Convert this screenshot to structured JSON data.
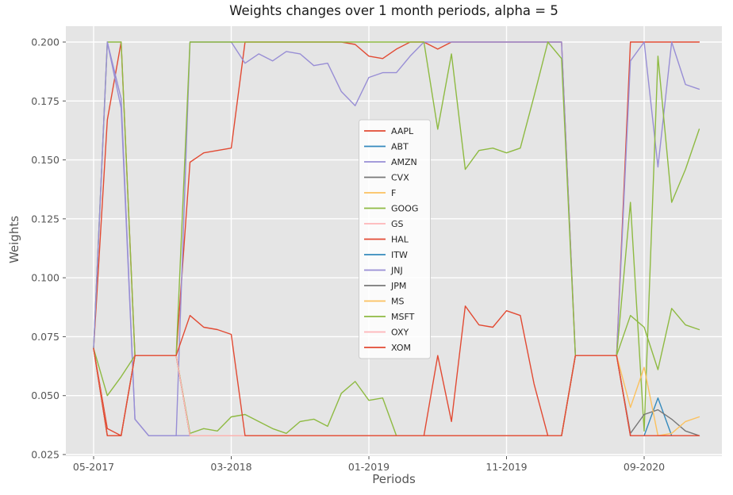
{
  "figure": {
    "title": "Weights changes over 1 month periods, alpha = 5",
    "xlabel": "Periods",
    "ylabel": "Weights"
  },
  "chart_data": {
    "type": "line",
    "title": "Weights changes over 1 month periods, alpha = 5",
    "xlabel": "Periods",
    "ylabel": "Weights",
    "grid": true,
    "plot_bg": "#e5e5e5",
    "grid_color": "#ffffff",
    "tick_color": "#555555",
    "legend_position": "center",
    "ylim": [
      0.02433,
      0.20673
    ],
    "y_ticks": [
      0.025,
      0.05,
      0.075,
      0.1,
      0.125,
      0.15,
      0.175,
      0.2
    ],
    "y_tick_labels": [
      "0.025",
      "0.050",
      "0.075",
      "0.100",
      "0.125",
      "0.150",
      "0.175",
      "0.200"
    ],
    "x_labels": [
      "05-2017",
      "06-2017",
      "07-2017",
      "08-2017",
      "09-2017",
      "10-2017",
      "11-2017",
      "12-2017",
      "01-2018",
      "02-2018",
      "03-2018",
      "04-2018",
      "05-2018",
      "06-2018",
      "07-2018",
      "08-2018",
      "09-2018",
      "10-2018",
      "11-2018",
      "12-2018",
      "01-2019",
      "02-2019",
      "03-2019",
      "04-2019",
      "05-2019",
      "06-2019",
      "07-2019",
      "08-2019",
      "09-2019",
      "10-2019",
      "11-2019",
      "12-2019",
      "01-2020",
      "02-2020",
      "03-2020",
      "04-2020",
      "05-2020",
      "06-2020",
      "07-2020",
      "08-2020",
      "09-2020",
      "10-2020",
      "11-2020",
      "12-2020",
      "01-2021"
    ],
    "x_ticks": [
      {
        "index": 0,
        "label": "05-2017"
      },
      {
        "index": 10,
        "label": "03-2018"
      },
      {
        "index": 20,
        "label": "01-2019"
      },
      {
        "index": 30,
        "label": "11-2019"
      },
      {
        "index": 40,
        "label": "09-2020"
      }
    ],
    "series": [
      {
        "name": "AAPL",
        "color": "#E24A33",
        "values": [
          0.07,
          0.167,
          0.2,
          0.067,
          0.067,
          0.067,
          0.067,
          0.149,
          0.153,
          0.154,
          0.155,
          0.2,
          0.2,
          0.2,
          0.2,
          0.2,
          0.2,
          0.2,
          0.2,
          0.199,
          0.194,
          0.193,
          0.197,
          0.2,
          0.2,
          0.197,
          0.2,
          0.2,
          0.2,
          0.2,
          0.2,
          0.2,
          0.2,
          0.2,
          0.2,
          0.067,
          0.067,
          0.067,
          0.067,
          0.2,
          0.2,
          0.2,
          0.2,
          0.2,
          0.2
        ]
      },
      {
        "name": "ABT",
        "color": "#348ABD",
        "values": [
          0.07,
          0.033,
          0.033,
          0.067,
          0.067,
          0.067,
          0.067,
          0.033,
          0.033,
          0.033,
          0.033,
          0.033,
          0.033,
          0.033,
          0.033,
          0.033,
          0.033,
          0.033,
          0.033,
          0.033,
          0.033,
          0.033,
          0.033,
          0.033,
          0.033,
          0.033,
          0.033,
          0.033,
          0.033,
          0.033,
          0.033,
          0.033,
          0.033,
          0.033,
          0.033,
          0.067,
          0.067,
          0.067,
          0.067,
          0.033,
          0.033,
          0.033,
          0.033,
          0.033,
          0.033
        ]
      },
      {
        "name": "AMZN",
        "color": "#988ED5",
        "values": [
          0.07,
          0.2,
          0.176,
          0.04,
          0.033,
          0.033,
          0.033,
          0.2,
          0.2,
          0.2,
          0.2,
          0.191,
          0.195,
          0.192,
          0.196,
          0.195,
          0.19,
          0.191,
          0.179,
          0.173,
          0.185,
          0.187,
          0.187,
          0.194,
          0.2,
          0.2,
          0.2,
          0.2,
          0.2,
          0.2,
          0.2,
          0.2,
          0.2,
          0.2,
          0.2,
          0.067,
          0.067,
          0.067,
          0.067,
          0.192,
          0.2,
          0.147,
          0.2,
          0.182,
          0.18
        ]
      },
      {
        "name": "CVX",
        "color": "#777777",
        "values": [
          0.07,
          0.033,
          0.033,
          0.067,
          0.067,
          0.067,
          0.067,
          0.033,
          0.033,
          0.033,
          0.033,
          0.033,
          0.033,
          0.033,
          0.033,
          0.033,
          0.033,
          0.033,
          0.033,
          0.033,
          0.033,
          0.033,
          0.033,
          0.033,
          0.033,
          0.033,
          0.033,
          0.033,
          0.033,
          0.033,
          0.033,
          0.033,
          0.033,
          0.033,
          0.033,
          0.067,
          0.067,
          0.067,
          0.067,
          0.033,
          0.033,
          0.033,
          0.033,
          0.033,
          0.033
        ]
      },
      {
        "name": "F",
        "color": "#FBC15E",
        "values": [
          0.07,
          0.033,
          0.033,
          0.067,
          0.067,
          0.067,
          0.067,
          0.033,
          0.033,
          0.033,
          0.033,
          0.033,
          0.033,
          0.033,
          0.033,
          0.033,
          0.033,
          0.033,
          0.033,
          0.033,
          0.033,
          0.033,
          0.033,
          0.033,
          0.033,
          0.033,
          0.033,
          0.033,
          0.033,
          0.033,
          0.033,
          0.033,
          0.033,
          0.033,
          0.033,
          0.067,
          0.067,
          0.067,
          0.067,
          0.033,
          0.033,
          0.033,
          0.033,
          0.033,
          0.033
        ]
      },
      {
        "name": "GOOG",
        "color": "#8EBA42",
        "values": [
          0.07,
          0.2,
          0.2,
          0.067,
          0.067,
          0.067,
          0.067,
          0.2,
          0.2,
          0.2,
          0.2,
          0.2,
          0.2,
          0.2,
          0.2,
          0.2,
          0.2,
          0.2,
          0.2,
          0.2,
          0.2,
          0.2,
          0.2,
          0.2,
          0.2,
          0.163,
          0.195,
          0.146,
          0.154,
          0.155,
          0.153,
          0.155,
          0.177,
          0.2,
          0.193,
          0.067,
          0.067,
          0.067,
          0.067,
          0.132,
          0.035,
          0.194,
          0.132,
          0.146,
          0.163
        ]
      },
      {
        "name": "GS",
        "color": "#FFB5B8",
        "values": [
          0.07,
          0.033,
          0.033,
          0.067,
          0.067,
          0.067,
          0.067,
          0.033,
          0.033,
          0.033,
          0.033,
          0.033,
          0.033,
          0.033,
          0.033,
          0.033,
          0.033,
          0.033,
          0.033,
          0.033,
          0.033,
          0.033,
          0.033,
          0.033,
          0.033,
          0.033,
          0.033,
          0.033,
          0.033,
          0.033,
          0.033,
          0.033,
          0.033,
          0.033,
          0.033,
          0.067,
          0.067,
          0.067,
          0.067,
          0.033,
          0.033,
          0.033,
          0.033,
          0.033,
          0.033
        ]
      },
      {
        "name": "HAL",
        "color": "#E24A33",
        "values": [
          0.07,
          0.036,
          0.033,
          0.067,
          0.067,
          0.067,
          0.067,
          0.033,
          0.033,
          0.033,
          0.033,
          0.033,
          0.033,
          0.033,
          0.033,
          0.033,
          0.033,
          0.033,
          0.033,
          0.033,
          0.033,
          0.033,
          0.033,
          0.033,
          0.033,
          0.067,
          0.039,
          0.088,
          0.08,
          0.079,
          0.086,
          0.084,
          0.055,
          0.033,
          0.033,
          0.067,
          0.067,
          0.067,
          0.067,
          0.033,
          0.033,
          0.033,
          0.033,
          0.033,
          0.033
        ]
      },
      {
        "name": "ITW",
        "color": "#348ABD",
        "values": [
          0.07,
          0.033,
          0.033,
          0.067,
          0.067,
          0.067,
          0.067,
          0.033,
          0.033,
          0.033,
          0.033,
          0.033,
          0.033,
          0.033,
          0.033,
          0.033,
          0.033,
          0.033,
          0.033,
          0.033,
          0.033,
          0.033,
          0.033,
          0.033,
          0.033,
          0.033,
          0.033,
          0.033,
          0.033,
          0.033,
          0.033,
          0.033,
          0.033,
          0.033,
          0.033,
          0.067,
          0.067,
          0.067,
          0.067,
          0.033,
          0.033,
          0.049,
          0.033,
          0.033,
          0.033
        ]
      },
      {
        "name": "JNJ",
        "color": "#988ED5",
        "values": [
          0.07,
          0.2,
          0.172,
          0.04,
          0.033,
          0.033,
          0.033,
          0.033,
          0.033,
          0.033,
          0.033,
          0.033,
          0.033,
          0.033,
          0.033,
          0.033,
          0.033,
          0.033,
          0.033,
          0.033,
          0.033,
          0.033,
          0.033,
          0.033,
          0.033,
          0.033,
          0.033,
          0.033,
          0.033,
          0.033,
          0.033,
          0.033,
          0.033,
          0.033,
          0.033,
          0.067,
          0.067,
          0.067,
          0.067,
          0.033,
          0.033,
          0.033,
          0.033,
          0.033,
          0.033
        ]
      },
      {
        "name": "JPM",
        "color": "#777777",
        "values": [
          0.07,
          0.033,
          0.033,
          0.067,
          0.067,
          0.067,
          0.067,
          0.033,
          0.033,
          0.033,
          0.033,
          0.033,
          0.033,
          0.033,
          0.033,
          0.033,
          0.033,
          0.033,
          0.033,
          0.033,
          0.033,
          0.033,
          0.033,
          0.033,
          0.033,
          0.033,
          0.033,
          0.033,
          0.033,
          0.033,
          0.033,
          0.033,
          0.033,
          0.033,
          0.033,
          0.067,
          0.067,
          0.067,
          0.067,
          0.034,
          0.042,
          0.044,
          0.04,
          0.035,
          0.033
        ]
      },
      {
        "name": "MS",
        "color": "#FBC15E",
        "values": [
          0.07,
          0.033,
          0.033,
          0.067,
          0.067,
          0.067,
          0.067,
          0.033,
          0.033,
          0.033,
          0.033,
          0.033,
          0.033,
          0.033,
          0.033,
          0.033,
          0.033,
          0.033,
          0.033,
          0.033,
          0.033,
          0.033,
          0.033,
          0.033,
          0.033,
          0.033,
          0.033,
          0.033,
          0.033,
          0.033,
          0.033,
          0.033,
          0.033,
          0.033,
          0.033,
          0.067,
          0.067,
          0.067,
          0.067,
          0.045,
          0.062,
          0.033,
          0.034,
          0.039,
          0.041
        ]
      },
      {
        "name": "MSFT",
        "color": "#8EBA42",
        "values": [
          0.07,
          0.05,
          0.058,
          0.067,
          0.067,
          0.067,
          0.067,
          0.034,
          0.036,
          0.035,
          0.041,
          0.042,
          0.039,
          0.036,
          0.034,
          0.039,
          0.04,
          0.037,
          0.051,
          0.056,
          0.048,
          0.049,
          0.033,
          0.033,
          0.033,
          0.033,
          0.033,
          0.033,
          0.033,
          0.033,
          0.033,
          0.033,
          0.033,
          0.033,
          0.033,
          0.067,
          0.067,
          0.067,
          0.067,
          0.084,
          0.079,
          0.061,
          0.087,
          0.08,
          0.078
        ]
      },
      {
        "name": "OXY",
        "color": "#FFB5B8",
        "values": [
          0.07,
          0.033,
          0.033,
          0.067,
          0.067,
          0.067,
          0.067,
          0.033,
          0.033,
          0.033,
          0.033,
          0.033,
          0.033,
          0.033,
          0.033,
          0.033,
          0.033,
          0.033,
          0.033,
          0.033,
          0.033,
          0.033,
          0.033,
          0.033,
          0.033,
          0.033,
          0.033,
          0.033,
          0.033,
          0.033,
          0.033,
          0.033,
          0.033,
          0.033,
          0.033,
          0.067,
          0.067,
          0.067,
          0.067,
          0.033,
          0.033,
          0.033,
          0.033,
          0.033,
          0.033
        ]
      },
      {
        "name": "XOM",
        "color": "#E24A33",
        "values": [
          0.07,
          0.033,
          0.033,
          0.067,
          0.067,
          0.067,
          0.067,
          0.084,
          0.079,
          0.078,
          0.076,
          0.033,
          0.033,
          0.033,
          0.033,
          0.033,
          0.033,
          0.033,
          0.033,
          0.033,
          0.033,
          0.033,
          0.033,
          0.033,
          0.033,
          0.033,
          0.033,
          0.033,
          0.033,
          0.033,
          0.033,
          0.033,
          0.033,
          0.033,
          0.033,
          0.067,
          0.067,
          0.067,
          0.067,
          0.033,
          0.033,
          0.033,
          0.033,
          0.033,
          0.033
        ]
      }
    ]
  }
}
